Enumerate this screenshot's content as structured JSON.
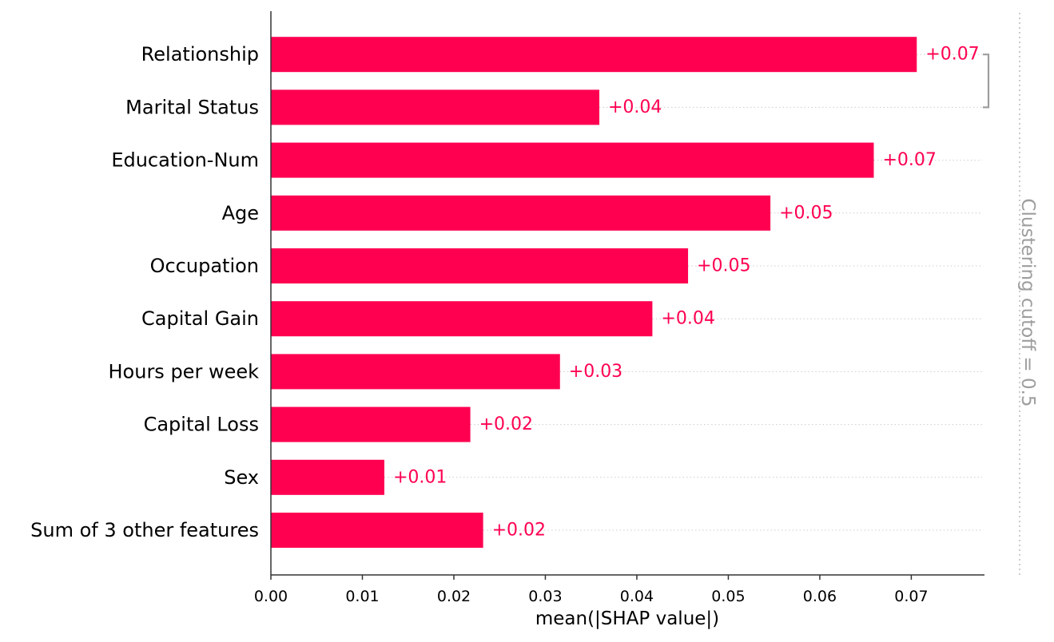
{
  "chart_data": {
    "type": "bar",
    "orientation": "horizontal",
    "categories": [
      "Relationship",
      "Marital Status",
      "Education-Num",
      "Age",
      "Occupation",
      "Capital Gain",
      "Hours per week",
      "Capital Loss",
      "Sex",
      "Sum of 3 other features"
    ],
    "values": [
      0.0706,
      0.0359,
      0.0659,
      0.0546,
      0.0456,
      0.0417,
      0.0316,
      0.0218,
      0.0124,
      0.0232
    ],
    "value_labels": [
      "+0.07",
      "+0.04",
      "+0.07",
      "+0.05",
      "+0.05",
      "+0.04",
      "+0.03",
      "+0.02",
      "+0.01",
      "+0.02"
    ],
    "xlabel": "mean(|SHAP value|)",
    "ylabel": "",
    "xlim": [
      0,
      0.078
    ],
    "xticks": [
      0.0,
      0.01,
      0.02,
      0.03,
      0.04,
      0.05,
      0.06,
      0.07
    ],
    "xtick_labels": [
      "0.00",
      "0.01",
      "0.02",
      "0.03",
      "0.04",
      "0.05",
      "0.06",
      "0.07"
    ],
    "grid": "dotted row guides",
    "clustering_label": "Clustering cutoff = 0.5",
    "clustering_pairs": [
      [
        "Relationship",
        "Marital Status"
      ]
    ],
    "colors": {
      "bar": "#ff0051",
      "value_text": "#ff0051",
      "axis": "#333333",
      "guide": "#cccccc",
      "cutoff": "#9e9e9e"
    }
  }
}
